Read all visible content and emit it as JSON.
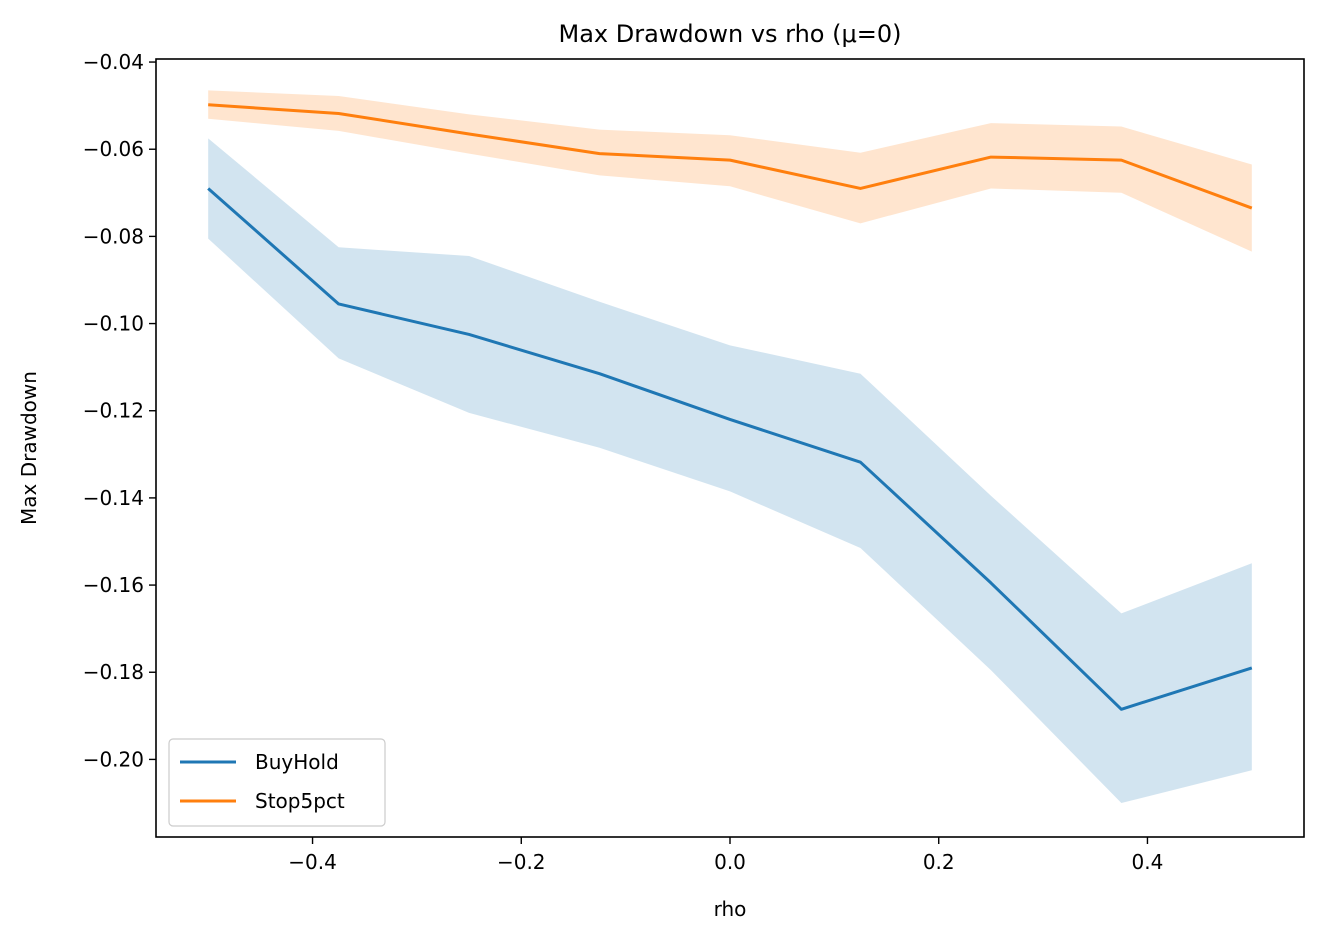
{
  "chart_data": {
    "type": "line",
    "title": "Max Drawdown vs rho (μ=0)",
    "xlabel": "rho",
    "ylabel": "Max Drawdown",
    "xlim": [
      -0.55,
      0.55
    ],
    "ylim": [
      -0.2178,
      -0.0393
    ],
    "xticks": [
      -0.4,
      -0.2,
      0.0,
      0.2,
      0.4
    ],
    "xtick_labels": [
      "−0.4",
      "−0.2",
      "0.0",
      "0.2",
      "0.4"
    ],
    "yticks": [
      -0.04,
      -0.06,
      -0.08,
      -0.1,
      -0.12,
      -0.14,
      -0.16,
      -0.18,
      -0.2
    ],
    "ytick_labels": [
      "−0.04",
      "−0.06",
      "−0.08",
      "−0.10",
      "−0.12",
      "−0.14",
      "−0.16",
      "−0.18",
      "−0.20"
    ],
    "grid": false,
    "legend_position": "lower-left",
    "x": [
      -0.5,
      -0.375,
      -0.25,
      -0.125,
      0.0,
      0.125,
      0.25,
      0.375,
      0.5
    ],
    "series": [
      {
        "name": "BuyHold",
        "color": "#1f77b4",
        "band_color": "#1f77b4",
        "values": [
          -0.069,
          -0.0955,
          -0.1025,
          -0.1115,
          -0.122,
          -0.1318,
          -0.1595,
          -0.1885,
          -0.179
        ],
        "upper": [
          -0.0575,
          -0.0825,
          -0.0845,
          -0.095,
          -0.105,
          -0.1115,
          -0.1395,
          -0.1665,
          -0.155
        ],
        "lower": [
          -0.0805,
          -0.108,
          -0.1205,
          -0.1285,
          -0.1385,
          -0.1515,
          -0.1795,
          -0.21,
          -0.2025
        ]
      },
      {
        "name": "Stop5pct",
        "color": "#ff7f0e",
        "band_color": "#ff7f0e",
        "values": [
          -0.0498,
          -0.0518,
          -0.0565,
          -0.061,
          -0.0625,
          -0.069,
          -0.0618,
          -0.0625,
          -0.0735
        ],
        "upper": [
          -0.0465,
          -0.0478,
          -0.052,
          -0.0555,
          -0.0568,
          -0.0608,
          -0.054,
          -0.0548,
          -0.0635
        ],
        "lower": [
          -0.053,
          -0.0558,
          -0.061,
          -0.066,
          -0.0685,
          -0.077,
          -0.069,
          -0.07,
          -0.0835
        ]
      }
    ]
  }
}
